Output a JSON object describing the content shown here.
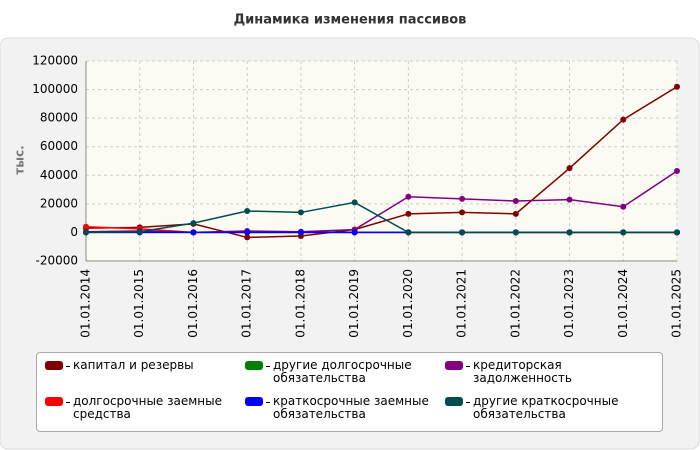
{
  "chart_data": {
    "type": "line",
    "title": "Динамика изменения пассивов",
    "y_label": "тыс.",
    "categories": [
      "01.01.2014",
      "01.01.2015",
      "01.01.2016",
      "01.01.2017",
      "01.01.2018",
      "01.01.2019",
      "01.01.2020",
      "01.01.2021",
      "01.01.2022",
      "01.01.2023",
      "01.01.2024",
      "01.01.2025"
    ],
    "series": [
      {
        "name": "капитал и резервы",
        "color": "#800000",
        "values": [
          3000,
          3500,
          6000,
          -3500,
          -2500,
          2000,
          13000,
          14000,
          13000,
          45000,
          79000,
          102000
        ]
      },
      {
        "name": "долгосрочные заемные средства",
        "color": "#ff0000",
        "values": [
          4000,
          2500,
          0,
          0,
          0,
          0,
          0,
          0,
          0,
          0,
          0,
          0
        ]
      },
      {
        "name": "другие долгосрочные обязательства",
        "color": "#008000",
        "values": [
          0,
          0,
          0,
          0,
          0,
          0,
          0,
          0,
          0,
          0,
          0,
          0
        ]
      },
      {
        "name": "кредиторская задолженность",
        "color": "#800080",
        "values": [
          500,
          1000,
          0,
          1000,
          500,
          2000,
          25000,
          23500,
          22000,
          23000,
          18000,
          43000
        ]
      },
      {
        "name": "краткосрочные заемные обязательства",
        "color": "#0000ff",
        "values": [
          0,
          0,
          0,
          0,
          0,
          0,
          0,
          0,
          0,
          0,
          0,
          0
        ]
      },
      {
        "name": "другие краткосрочные обязательства",
        "color": "#004d4d",
        "values": [
          0,
          500,
          6500,
          15000,
          14000,
          21000,
          0,
          0,
          0,
          0,
          0,
          0
        ]
      }
    ],
    "ylim": [
      -20000,
      120000
    ],
    "yticks": [
      -20000,
      0,
      20000,
      40000,
      60000,
      80000,
      100000,
      120000
    ],
    "grid": true
  }
}
